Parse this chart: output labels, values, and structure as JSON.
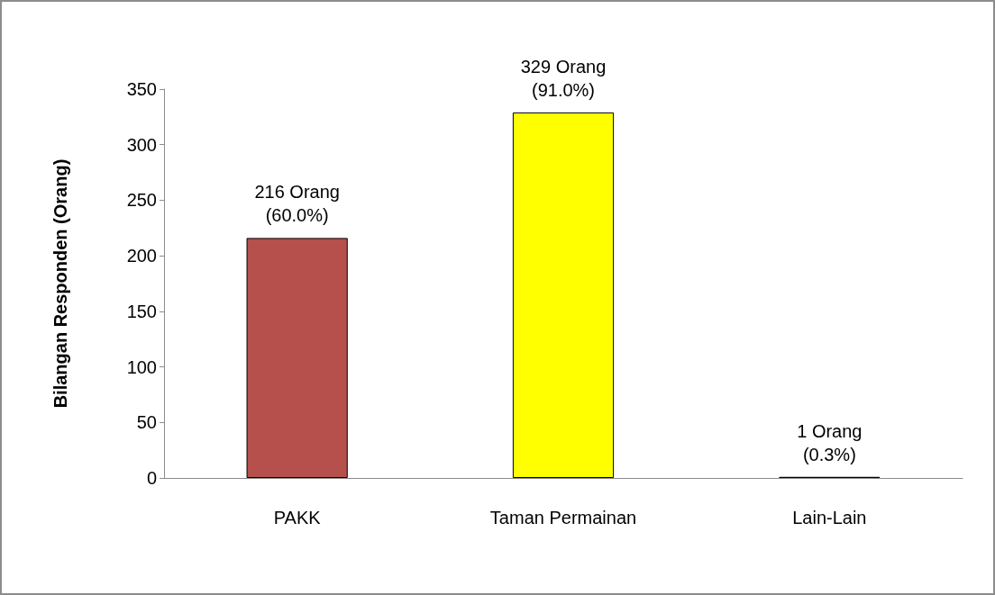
{
  "chart_data": {
    "type": "bar",
    "ylabel": "Bilangan Responden (Orang)",
    "categories": [
      "PAKK",
      "Taman Permainan",
      "Lain-Lain"
    ],
    "values": [
      216,
      329,
      1
    ],
    "colors": [
      "#b5504d",
      "#ffff00",
      "#2f6b7f"
    ],
    "value_labels": [
      "216 Orang\n(60.0%)",
      "329 Orang\n(91.0%)",
      "1 Orang\n(0.3%)"
    ],
    "ylim": [
      0,
      350
    ],
    "yticks": [
      0,
      50,
      100,
      150,
      200,
      250,
      300,
      350
    ],
    "grid": false
  }
}
